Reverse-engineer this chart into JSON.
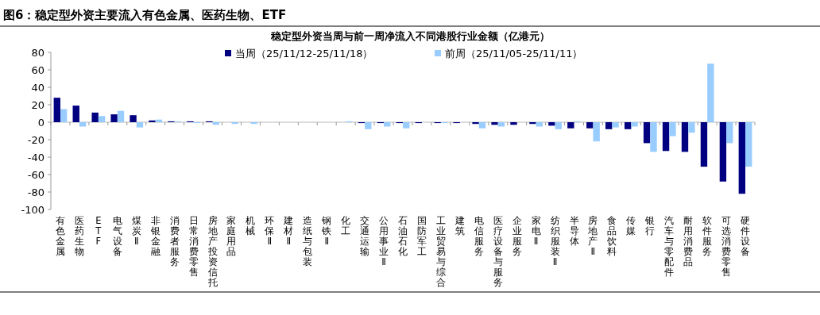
{
  "chart_data": {
    "type": "bar",
    "title": "图6：稳定型外资主要流入有色金属、医药生物、ETF",
    "subtitle": "稳定型外资当周与前一周净流入不同港股行业金额（亿港元）",
    "categories": [
      "有色金属",
      "医药生物",
      "ETF",
      "电气设备",
      "煤炭Ⅱ",
      "非银金融",
      "消费者服务",
      "日常消费零售",
      "房地产投资信托",
      "家庭用品",
      "机械",
      "环保Ⅱ",
      "建材Ⅱ",
      "造纸与包装",
      "钢铁Ⅱ",
      "化工",
      "交通运输",
      "公用事业Ⅱ",
      "石油石化",
      "国防军工",
      "工业贸易与综合",
      "建筑",
      "电信服务",
      "医疗设备与服务",
      "企业服务",
      "家电Ⅱ",
      "纺织服装Ⅱ",
      "半导体",
      "房地产Ⅱ",
      "食品饮料",
      "传媒",
      "银行",
      "汽车与零配件",
      "耐用消费品",
      "软件服务",
      "可选消费零售",
      "硬件设备"
    ],
    "series": [
      {
        "name": "当周（25/11/12-25/11/18）",
        "color": "#000080",
        "values": [
          28,
          19,
          11,
          9,
          8,
          2,
          1,
          1,
          1,
          0,
          0,
          0,
          0,
          0,
          0,
          0,
          -1,
          -1,
          -1,
          -1,
          -1,
          -1,
          -2,
          -3,
          -3,
          -2,
          -4,
          -7,
          -7,
          -8,
          -8,
          -24,
          -33,
          -34,
          -51,
          -68,
          -82
        ]
      },
      {
        "name": "前周（25/11/05-25/11/11）",
        "color": "#99ccff",
        "values": [
          15,
          -5,
          7,
          13,
          -6,
          3,
          1,
          -1,
          -3,
          -2,
          -2,
          0,
          0,
          0,
          0,
          1,
          -8,
          -5,
          -7,
          0,
          -1,
          0,
          -7,
          -5,
          0,
          -5,
          -8,
          1,
          -22,
          -6,
          -5,
          -34,
          -16,
          -12,
          67,
          -24,
          -51
        ]
      }
    ],
    "ylim": [
      -100,
      80
    ],
    "yticks": [
      -100,
      -80,
      -60,
      -40,
      -20,
      0,
      20,
      40,
      60,
      80
    ],
    "legend": "top"
  }
}
